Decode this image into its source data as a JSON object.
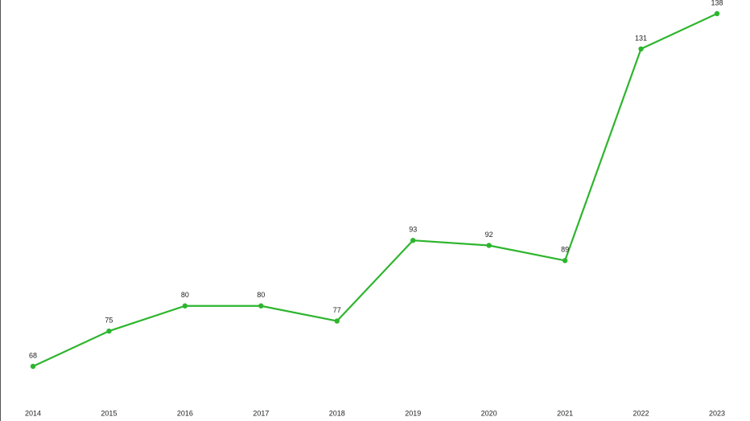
{
  "chart_data": {
    "type": "line",
    "categories": [
      "2014",
      "2015",
      "2016",
      "2017",
      "2018",
      "2019",
      "2020",
      "2021",
      "2022",
      "2023"
    ],
    "values": [
      68,
      75,
      80,
      80,
      77,
      93,
      92,
      89,
      131,
      138
    ],
    "color": "#2db52d"
  }
}
